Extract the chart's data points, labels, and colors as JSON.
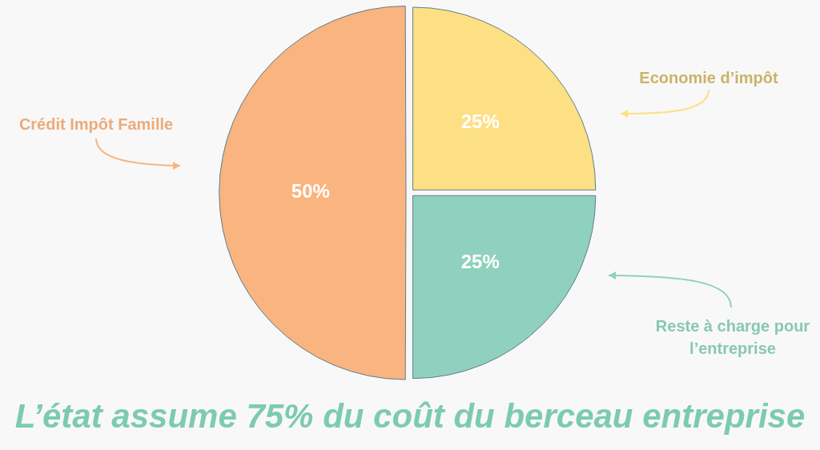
{
  "chart_data": {
    "type": "pie",
    "title": "L’état assume 75% du coût du berceau entreprise",
    "categories": [
      "Economie d’impôt",
      "Reste à charge pour l’entreprise",
      "Crédit Impôt Famille"
    ],
    "values": [
      25,
      25,
      50
    ],
    "colors": [
      "#fde084",
      "#8fd1bd",
      "#f9b47f"
    ],
    "value_labels": [
      "25%",
      "25%",
      "50%"
    ],
    "legend": false
  }
}
